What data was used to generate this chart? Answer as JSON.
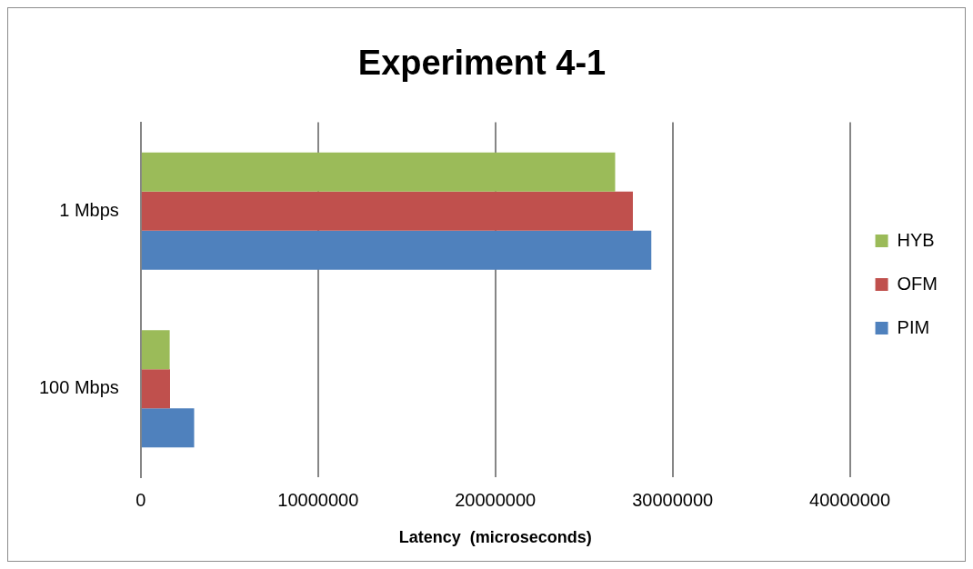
{
  "chart_data": {
    "type": "bar",
    "orientation": "horizontal",
    "title": "Experiment 4-1",
    "xlabel": "Latency  (microseconds)",
    "categories": [
      "1 Mbps",
      "100 Mbps"
    ],
    "series": [
      {
        "name": "HYB",
        "color": "#9bbb59",
        "values": [
          26760000,
          1630000
        ]
      },
      {
        "name": "OFM",
        "color": "#c0504d",
        "values": [
          27760000,
          1650000
        ]
      },
      {
        "name": "PIM",
        "color": "#4f81bd",
        "values": [
          28800000,
          3010000
        ]
      }
    ],
    "xlim": [
      0,
      40000000
    ],
    "xticks": [
      0,
      10000000,
      20000000,
      30000000,
      40000000
    ],
    "grid": "x",
    "legend": "right"
  }
}
